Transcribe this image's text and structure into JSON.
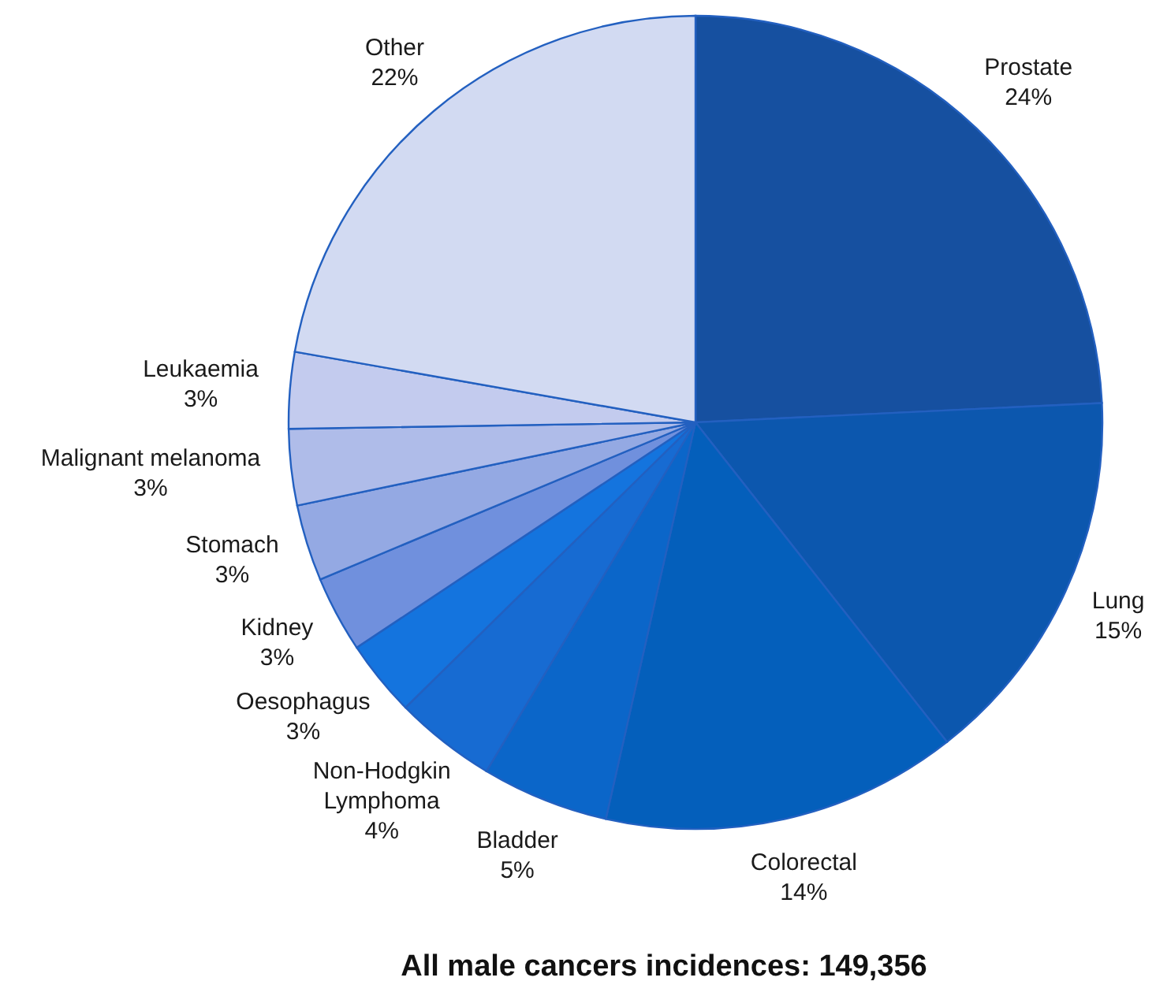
{
  "chart_data": {
    "type": "pie",
    "title": "All male cancers incidences: 149,356",
    "categories": [
      "Prostate",
      "Lung",
      "Colorectal",
      "Bladder",
      "Non-Hodgkin Lymphoma",
      "Oesophagus",
      "Kidney",
      "Stomach",
      "Malignant melanoma",
      "Leukaemia",
      "Other"
    ],
    "values": [
      24,
      15,
      14,
      5,
      4,
      3,
      3,
      3,
      3,
      3,
      22
    ],
    "value_labels": [
      "24%",
      "15%",
      "14%",
      "5%",
      "4%",
      "3%",
      "3%",
      "3%",
      "3%",
      "3%",
      "22%"
    ],
    "colors": [
      "#1650a0",
      "#0c57ae",
      "#045fbb",
      "#0b66c9",
      "#176bd2",
      "#1474de",
      "#7090dd",
      "#94a9e3",
      "#afbce9",
      "#c3cbee",
      "#d2daf2"
    ]
  }
}
